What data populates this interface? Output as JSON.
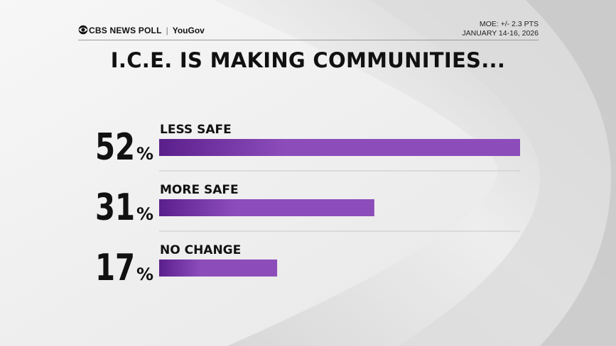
{
  "header": {
    "brand_name": "CBS NEWS POLL",
    "partner": "YouGov",
    "moe": "MOE: +/- 2.3 PTS",
    "dates": "JANUARY 14-16, 2026"
  },
  "colors": {
    "bar_dark": "#5b1f8c",
    "bar_light": "#8c4dbb",
    "text": "#111111",
    "rule": "#9a9a9a"
  },
  "chart_data": {
    "type": "bar",
    "title": "I.C.E. IS MAKING COMMUNITIES...",
    "categories": [
      "LESS SAFE",
      "MORE SAFE",
      "NO CHANGE"
    ],
    "values": [
      52,
      31,
      17
    ],
    "value_labels": [
      "52",
      "31",
      "17"
    ],
    "unit": "%",
    "xlim": [
      0,
      52
    ],
    "orientation": "horizontal",
    "grid": false,
    "legend": "none"
  }
}
